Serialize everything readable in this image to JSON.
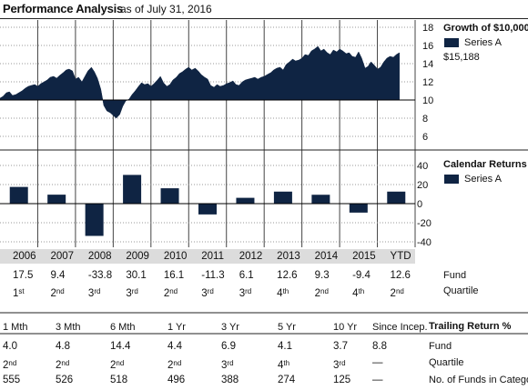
{
  "header": {
    "title": "Performance Analysis",
    "as_of": "as of July 31, 2016"
  },
  "growth_panel": {
    "title": "Growth of $10,000",
    "legend_label": "Series A",
    "ending_value": "$15,188",
    "y_ticks": [
      "18",
      "16",
      "14",
      "12",
      "10",
      "8",
      "6"
    ]
  },
  "returns_panel": {
    "title": "Calendar Returns %",
    "legend_label": "Series A",
    "y_ticks": [
      "40",
      "20",
      "0",
      "-20",
      "-40"
    ]
  },
  "calendar": {
    "years": [
      "2006",
      "2007",
      "2008",
      "2009",
      "2010",
      "2011",
      "2012",
      "2013",
      "2014",
      "2015",
      "YTD"
    ],
    "fund": [
      "17.5",
      "9.4",
      "-33.8",
      "30.1",
      "16.1",
      "-11.3",
      "6.1",
      "12.6",
      "9.3",
      "-9.4",
      "12.6"
    ],
    "quartile_num": [
      "1",
      "2",
      "3",
      "3",
      "2",
      "3",
      "3",
      "4",
      "2",
      "4",
      "2"
    ],
    "quartile_suffix": [
      "st",
      "nd",
      "rd",
      "rd",
      "nd",
      "rd",
      "rd",
      "th",
      "nd",
      "th",
      "nd"
    ],
    "fund_label": "Fund",
    "quartile_label": "Quartile"
  },
  "trailing": {
    "title": "Trailing Return %",
    "periods": [
      "1 Mth",
      "3 Mth",
      "6 Mth",
      "1 Yr",
      "3 Yr",
      "5 Yr",
      "10 Yr",
      "Since Incep."
    ],
    "fund": [
      "4.0",
      "4.8",
      "14.4",
      "4.4",
      "6.9",
      "4.1",
      "3.7",
      "8.8"
    ],
    "quartile_num": [
      "2",
      "2",
      "2",
      "2",
      "3",
      "4",
      "3",
      ""
    ],
    "quartile_suffix": [
      "nd",
      "nd",
      "nd",
      "nd",
      "rd",
      "th",
      "rd",
      ""
    ],
    "funds_in_category": [
      "555",
      "526",
      "518",
      "496",
      "388",
      "274",
      "125",
      ""
    ],
    "dash": "—",
    "fund_label": "Fund",
    "quartile_label": "Quartile",
    "count_label": "No. of Funds in Category"
  },
  "chart_data": [
    {
      "type": "area",
      "title": "Growth of $10,000",
      "series": [
        {
          "name": "Series A"
        }
      ],
      "ylim": [
        6,
        18
      ],
      "baseline": 10,
      "x_range": [
        "2006-01",
        "2016-07"
      ],
      "end_value": 15188,
      "x": [
        2006.0,
        2006.08,
        2006.17,
        2006.25,
        2006.33,
        2006.42,
        2006.5,
        2006.58,
        2006.67,
        2006.75,
        2006.83,
        2006.92,
        2007.0,
        2007.08,
        2007.17,
        2007.25,
        2007.33,
        2007.42,
        2007.5,
        2007.58,
        2007.67,
        2007.75,
        2007.83,
        2007.92,
        2008.0,
        2008.08,
        2008.17,
        2008.25,
        2008.33,
        2008.42,
        2008.5,
        2008.58,
        2008.67,
        2008.75,
        2008.83,
        2008.92,
        2009.0,
        2009.08,
        2009.17,
        2009.25,
        2009.33,
        2009.42,
        2009.5,
        2009.58,
        2009.67,
        2009.75,
        2009.83,
        2009.92,
        2010.0,
        2010.08,
        2010.17,
        2010.25,
        2010.33,
        2010.42,
        2010.5,
        2010.58,
        2010.67,
        2010.75,
        2010.83,
        2010.92,
        2011.0,
        2011.08,
        2011.17,
        2011.25,
        2011.33,
        2011.42,
        2011.5,
        2011.58,
        2011.67,
        2011.75,
        2011.83,
        2011.92,
        2012.0,
        2012.08,
        2012.17,
        2012.25,
        2012.33,
        2012.42,
        2012.5,
        2012.58,
        2012.67,
        2012.75,
        2012.83,
        2012.92,
        2013.0,
        2013.08,
        2013.17,
        2013.25,
        2013.33,
        2013.42,
        2013.5,
        2013.58,
        2013.67,
        2013.75,
        2013.83,
        2013.92,
        2014.0,
        2014.08,
        2014.17,
        2014.25,
        2014.33,
        2014.42,
        2014.5,
        2014.58,
        2014.67,
        2014.75,
        2014.83,
        2014.92,
        2015.0,
        2015.08,
        2015.17,
        2015.25,
        2015.33,
        2015.42,
        2015.5,
        2015.58,
        2015.67,
        2015.75,
        2015.83,
        2015.92,
        2016.0,
        2016.08,
        2016.17,
        2016.25,
        2016.33,
        2016.42,
        2016.5,
        2016.58
      ],
      "values": [
        10.2,
        10.4,
        10.8,
        10.9,
        10.5,
        10.6,
        10.8,
        11.0,
        11.3,
        11.5,
        11.6,
        11.7,
        11.5,
        11.8,
        12.0,
        12.2,
        12.5,
        12.6,
        12.4,
        12.7,
        13.0,
        13.3,
        13.4,
        13.2,
        12.3,
        12.5,
        12.0,
        12.6,
        13.2,
        13.6,
        13.1,
        12.4,
        11.2,
        9.4,
        8.8,
        8.6,
        8.3,
        8.0,
        8.4,
        9.3,
        9.9,
        10.1,
        10.6,
        11.0,
        11.5,
        11.9,
        11.7,
        11.8,
        11.5,
        11.8,
        12.2,
        12.6,
        11.9,
        11.5,
        11.7,
        12.2,
        12.5,
        12.9,
        13.1,
        13.4,
        13.6,
        13.3,
        13.5,
        13.2,
        12.8,
        12.5,
        12.3,
        11.6,
        11.4,
        11.7,
        11.5,
        11.6,
        11.8,
        11.9,
        12.1,
        11.7,
        11.6,
        12.0,
        12.2,
        12.3,
        12.4,
        12.5,
        12.3,
        12.5,
        12.6,
        12.8,
        13.0,
        13.3,
        13.5,
        13.6,
        13.3,
        13.9,
        14.2,
        14.5,
        14.3,
        14.4,
        14.6,
        15.0,
        14.9,
        15.4,
        15.6,
        15.9,
        15.4,
        15.6,
        15.2,
        15.0,
        15.5,
        15.3,
        15.6,
        15.4,
        15.1,
        15.2,
        14.8,
        14.7,
        15.3,
        14.6,
        13.5,
        13.7,
        14.2,
        13.8,
        13.4,
        13.6,
        14.2,
        14.6,
        14.8,
        14.7,
        15.0,
        15.2
      ]
    },
    {
      "type": "bar",
      "title": "Calendar Returns %",
      "categories": [
        "2006",
        "2007",
        "2008",
        "2009",
        "2010",
        "2011",
        "2012",
        "2013",
        "2014",
        "2015",
        "YTD"
      ],
      "series": [
        {
          "name": "Series A",
          "values": [
            17.5,
            9.4,
            -33.8,
            30.1,
            16.1,
            -11.3,
            6.1,
            12.6,
            9.3,
            -9.4,
            12.6
          ]
        }
      ],
      "ylim": [
        -40,
        40
      ]
    }
  ]
}
